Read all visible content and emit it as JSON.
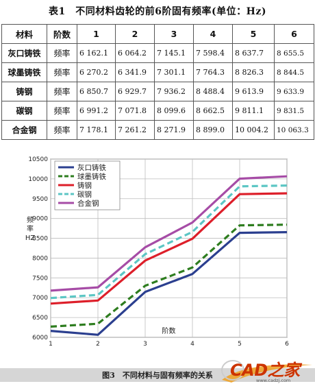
{
  "table": {
    "title": "表1　不同材料齿轮的前6阶固有频率(单位：Hz)",
    "headers": [
      "材料",
      "阶数",
      "1",
      "2",
      "3",
      "4",
      "5",
      "6"
    ],
    "rows": [
      {
        "material": "灰口铸铁",
        "order": "频率",
        "values": [
          "6 162.1",
          "6 064.2",
          "7 145.1",
          "7 598.4",
          "8 637.7",
          "8 655.5"
        ]
      },
      {
        "material": "球墨铸铁",
        "order": "频率",
        "values": [
          "6 270.2",
          "6 341.9",
          "7 301.1",
          "7 764.3",
          "8 826.3",
          "8 844.5"
        ]
      },
      {
        "material": "铸钢",
        "order": "频率",
        "values": [
          "6 850.7",
          "6 929.7",
          "7 936.2",
          "8 488.4",
          "9 613.9",
          "9 633.9"
        ]
      },
      {
        "material": "碳钢",
        "order": "频率",
        "values": [
          "6 991.2",
          "7 071.8",
          "8 099.6",
          "8 662.5",
          "9 811.1",
          "9 831.5"
        ]
      },
      {
        "material": "合金钢",
        "order": "频率",
        "values": [
          "7 178.1",
          "7 261.2",
          "8 271.9",
          "8 899.0",
          "10 004.2",
          "10 063.3"
        ]
      }
    ]
  },
  "chart_data": {
    "type": "line",
    "xlabel": "阶数",
    "ylabel": [
      "频",
      "率",
      "HZ"
    ],
    "x": [
      1,
      2,
      3,
      4,
      5,
      6
    ],
    "xlim": [
      1,
      6
    ],
    "ylim": [
      6000,
      10500
    ],
    "yticks": [
      6000,
      6500,
      7000,
      7500,
      8000,
      8500,
      9000,
      9500,
      10000,
      10500
    ],
    "xticks": [
      1,
      2,
      3,
      4,
      5,
      6
    ],
    "grid": true,
    "legend_position": "top-left",
    "series": [
      {
        "name": "灰口铸铁",
        "color": "#2b3f8f",
        "style": "solid",
        "values": [
          6162.1,
          6064.2,
          7145.1,
          7598.4,
          8637.7,
          8655.5
        ]
      },
      {
        "name": "球墨铸铁",
        "color": "#2e7d1f",
        "style": "dashed",
        "values": [
          6270.2,
          6341.9,
          7301.1,
          7764.3,
          8826.3,
          8844.5
        ]
      },
      {
        "name": "铸钢",
        "color": "#dd1f2a",
        "style": "solid",
        "values": [
          6850.7,
          6929.7,
          7936.2,
          8488.4,
          9613.9,
          9633.9
        ]
      },
      {
        "name": "碳钢",
        "color": "#5cc6c4",
        "style": "dashed",
        "values": [
          6991.2,
          7071.8,
          8099.6,
          8662.5,
          9811.1,
          9831.5
        ]
      },
      {
        "name": "合金钢",
        "color": "#a64ca6",
        "style": "solid",
        "values": [
          7178.1,
          7261.2,
          8271.9,
          8899.0,
          10004.2,
          10063.3
        ]
      }
    ]
  },
  "figure_caption": "图3　不同材料与固有频率的关系",
  "logo": {
    "text": "CAD之家",
    "url": "www.cadzj.com"
  }
}
